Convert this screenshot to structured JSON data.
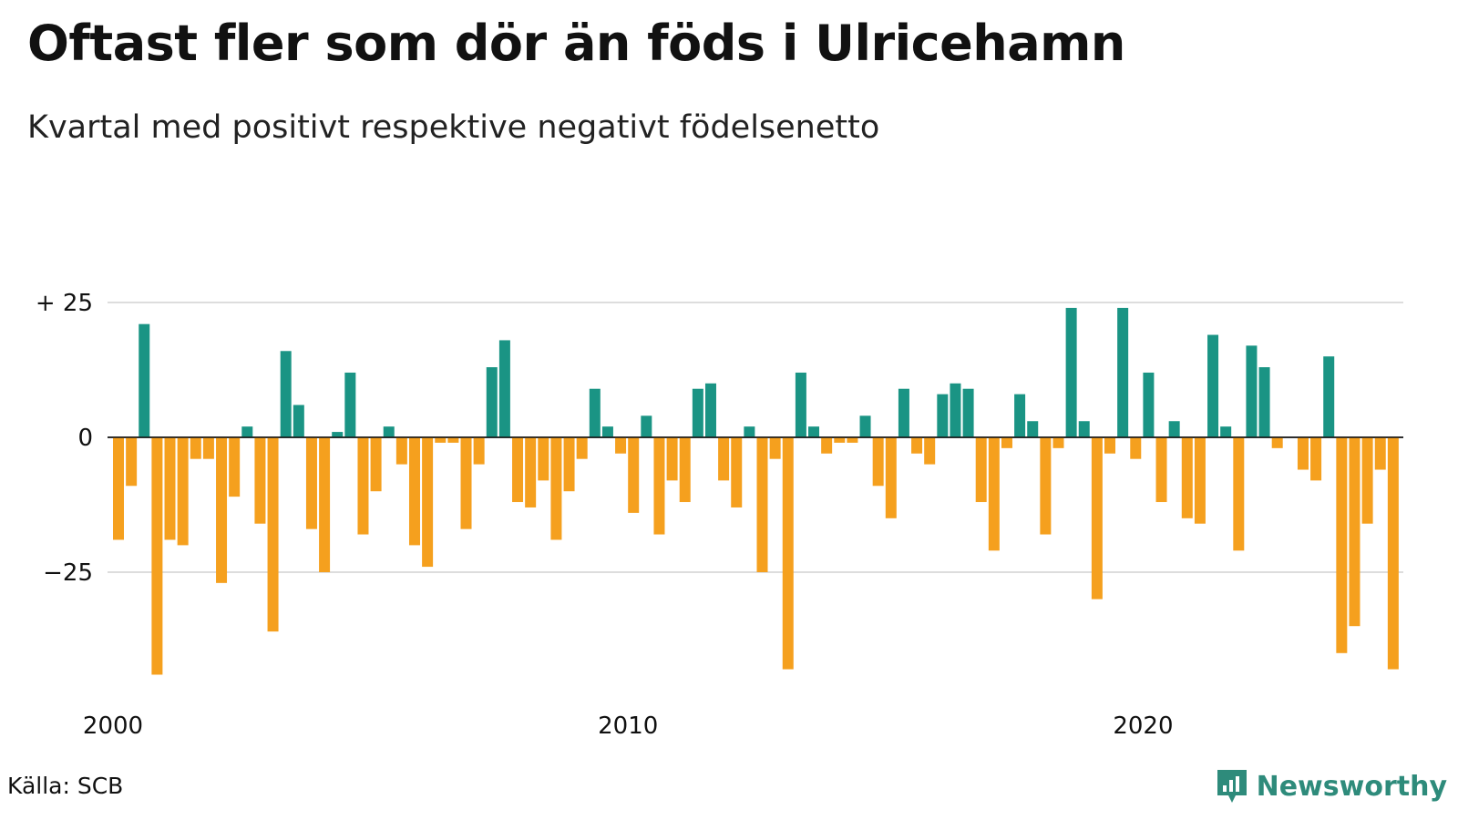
{
  "title": "Oftast fler som dör än föds i Ulricehamn",
  "subtitle": "Kvartal med positivt respektive negativt födelsenetto",
  "source": "Källa: SCB",
  "brand": {
    "name": "Newsworthy",
    "icon": "newsworthy-logo-icon"
  },
  "colors": {
    "positive": "#1a9484",
    "negative": "#f5a01e",
    "grid": "#dddddd"
  },
  "chart_data": {
    "type": "bar",
    "title": "Oftast fler som dör än föds i Ulricehamn",
    "subtitle": "Kvartal med positivt respektive negativt födelsenetto",
    "ylim": [
      -45,
      26
    ],
    "yticks": [
      25,
      0,
      -25
    ],
    "ytick_labels": [
      "+ 25",
      "0",
      "−25"
    ],
    "xticks": [
      "2000",
      "2010",
      "2020"
    ],
    "grid": true,
    "categories": [
      "2000 Q1",
      "2000 Q2",
      "2000 Q3",
      "2000 Q4",
      "2001 Q1",
      "2001 Q2",
      "2001 Q3",
      "2001 Q4",
      "2002 Q1",
      "2002 Q2",
      "2002 Q3",
      "2002 Q4",
      "2003 Q1",
      "2003 Q2",
      "2003 Q3",
      "2003 Q4",
      "2004 Q1",
      "2004 Q2",
      "2004 Q3",
      "2004 Q4",
      "2005 Q1",
      "2005 Q2",
      "2005 Q3",
      "2005 Q4",
      "2006 Q1",
      "2006 Q2",
      "2006 Q3",
      "2006 Q4",
      "2007 Q1",
      "2007 Q2",
      "2007 Q3",
      "2007 Q4",
      "2008 Q1",
      "2008 Q2",
      "2008 Q3",
      "2008 Q4",
      "2009 Q1",
      "2009 Q2",
      "2009 Q3",
      "2009 Q4",
      "2010 Q1",
      "2010 Q2",
      "2010 Q3",
      "2010 Q4",
      "2011 Q1",
      "2011 Q2",
      "2011 Q3",
      "2011 Q4",
      "2012 Q1",
      "2012 Q2",
      "2012 Q3",
      "2012 Q4",
      "2013 Q1",
      "2013 Q2",
      "2013 Q3",
      "2013 Q4",
      "2014 Q1",
      "2014 Q2",
      "2014 Q3",
      "2014 Q4",
      "2015 Q1",
      "2015 Q2",
      "2015 Q3",
      "2015 Q4",
      "2016 Q1",
      "2016 Q2",
      "2016 Q3",
      "2016 Q4",
      "2017 Q1",
      "2017 Q2",
      "2017 Q3",
      "2017 Q4",
      "2018 Q1",
      "2018 Q2",
      "2018 Q3",
      "2018 Q4",
      "2019 Q1",
      "2019 Q2",
      "2019 Q3",
      "2019 Q4",
      "2020 Q1",
      "2020 Q2",
      "2020 Q3",
      "2020 Q4",
      "2021 Q1",
      "2021 Q2",
      "2021 Q3",
      "2021 Q4",
      "2022 Q1",
      "2022 Q2",
      "2022 Q3",
      "2022 Q4",
      "2023 Q1",
      "2023 Q2",
      "2023 Q3",
      "2023 Q4",
      "2024 Q1",
      "2024 Q2",
      "2024 Q3",
      "2024 Q4"
    ],
    "values": [
      -19,
      -9,
      21,
      -44,
      -19,
      -20,
      -4,
      -4,
      -27,
      -11,
      2,
      -16,
      -36,
      16,
      6,
      -17,
      -25,
      1,
      12,
      -18,
      -10,
      2,
      -5,
      -20,
      -24,
      -1,
      -1,
      -17,
      -5,
      13,
      18,
      -12,
      -13,
      -8,
      -19,
      -10,
      -4,
      9,
      2,
      -3,
      -14,
      4,
      -18,
      -8,
      -12,
      9,
      10,
      -8,
      -13,
      2,
      -25,
      -4,
      -43,
      12,
      2,
      -3,
      -1,
      -1,
      4,
      -9,
      -15,
      9,
      -3,
      -5,
      8,
      10,
      9,
      -12,
      -21,
      -2,
      8,
      3,
      -18,
      -2,
      24,
      3,
      -30,
      -3,
      24,
      -4,
      12,
      -12,
      3,
      -15,
      -16,
      19,
      2,
      -21,
      17,
      13,
      -2,
      0,
      -6,
      -8,
      15,
      -40,
      -35,
      -16,
      -6,
      -43
    ]
  }
}
